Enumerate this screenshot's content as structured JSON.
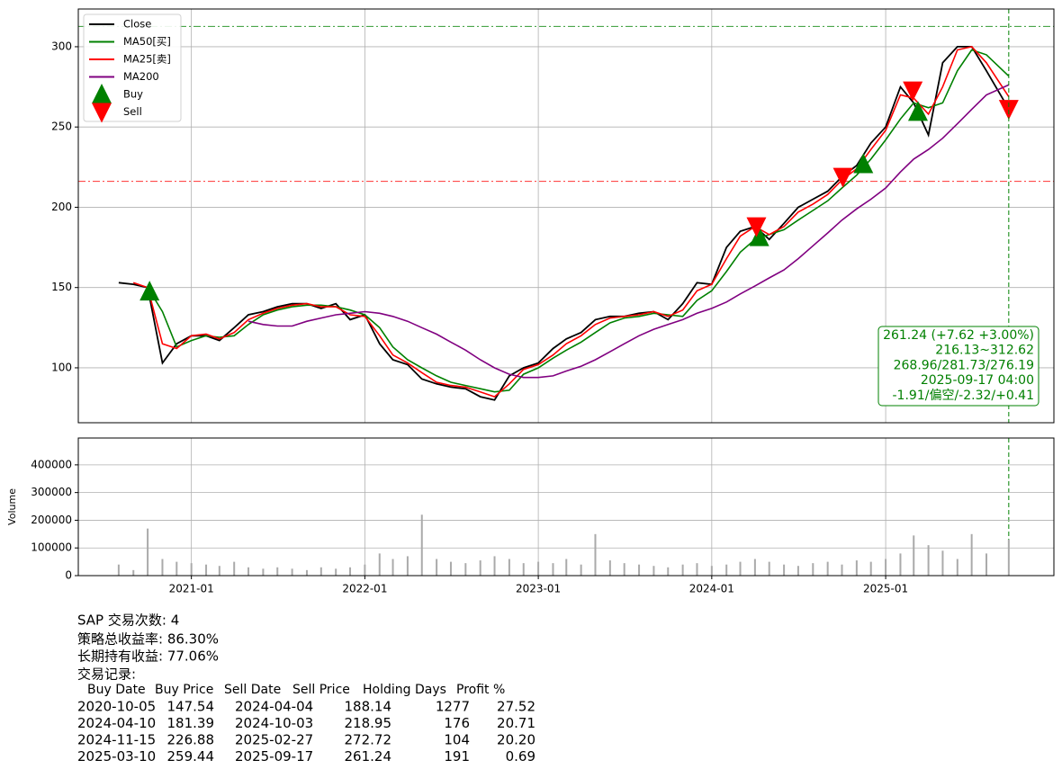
{
  "chart_data": [
    {
      "type": "line",
      "x": [
        "2020-08-01",
        "2020-09-01",
        "2020-10-01",
        "2020-11-01",
        "2020-12-01",
        "2021-01-01",
        "2021-02-01",
        "2021-03-01",
        "2021-04-01",
        "2021-05-01",
        "2021-06-01",
        "2021-07-01",
        "2021-08-01",
        "2021-09-01",
        "2021-10-01",
        "2021-11-01",
        "2021-12-01",
        "2022-01-01",
        "2022-02-01",
        "2022-03-01",
        "2022-04-01",
        "2022-05-01",
        "2022-06-01",
        "2022-07-01",
        "2022-08-01",
        "2022-09-01",
        "2022-10-01",
        "2022-11-01",
        "2022-12-01",
        "2023-01-01",
        "2023-02-01",
        "2023-03-01",
        "2023-04-01",
        "2023-05-01",
        "2023-06-01",
        "2023-07-01",
        "2023-08-01",
        "2023-09-01",
        "2023-10-01",
        "2023-11-01",
        "2023-12-01",
        "2024-01-01",
        "2024-02-01",
        "2024-03-01",
        "2024-04-01",
        "2024-05-01",
        "2024-06-01",
        "2024-07-01",
        "2024-08-01",
        "2024-09-01",
        "2024-10-01",
        "2024-11-01",
        "2024-12-01",
        "2025-01-01",
        "2025-02-01",
        "2025-03-01",
        "2025-04-01",
        "2025-05-01",
        "2025-06-01",
        "2025-07-01",
        "2025-08-01",
        "2025-09-17"
      ],
      "series": [
        {
          "name": "Close",
          "color": "#000000",
          "values": [
            153,
            152,
            150,
            103,
            115,
            120,
            120,
            117,
            125,
            133,
            135,
            138,
            140,
            140,
            137,
            140,
            130,
            133,
            115,
            105,
            102,
            93,
            90,
            88,
            87,
            82,
            80,
            95,
            100,
            103,
            112,
            118,
            122,
            130,
            132,
            132,
            134,
            135,
            130,
            140,
            153,
            152,
            175,
            185,
            188,
            180,
            190,
            200,
            205,
            210,
            219,
            226,
            240,
            250,
            275,
            265,
            245,
            290,
            300,
            300,
            285,
            261.24
          ]
        },
        {
          "name": "MA50[买]",
          "color": "#008000",
          "values": [
            null,
            null,
            150,
            135,
            113,
            117,
            120,
            119,
            120,
            127,
            133,
            136,
            138,
            139,
            139,
            138,
            136,
            133,
            125,
            113,
            105,
            100,
            95,
            91,
            89,
            87,
            85,
            86,
            96,
            100,
            106,
            111,
            116,
            122,
            128,
            131,
            132,
            134,
            133,
            132,
            142,
            148,
            160,
            172,
            180,
            183,
            186,
            192,
            198,
            204,
            212,
            220,
            230,
            242,
            255,
            265,
            262,
            265,
            285,
            298,
            295,
            281.73
          ]
        },
        {
          "name": "MA25[卖]",
          "color": "#ff0000",
          "values": [
            null,
            153,
            150,
            115,
            112,
            120,
            121,
            118,
            122,
            130,
            134,
            137,
            139,
            140,
            138,
            138,
            133,
            132,
            120,
            108,
            103,
            97,
            91,
            89,
            88,
            85,
            82,
            90,
            99,
            102,
            108,
            115,
            120,
            127,
            131,
            132,
            133,
            135,
            132,
            136,
            148,
            152,
            168,
            182,
            188,
            183,
            188,
            197,
            202,
            208,
            217,
            224,
            236,
            248,
            270,
            268,
            258,
            275,
            298,
            300,
            290,
            268.96
          ]
        },
        {
          "name": "MA200",
          "color": "#800080",
          "values": [
            null,
            null,
            null,
            null,
            null,
            null,
            null,
            null,
            null,
            129,
            127,
            126,
            126,
            129,
            131,
            133,
            134,
            135,
            134,
            132,
            129,
            125,
            121,
            116,
            111,
            105,
            100,
            96,
            94,
            94,
            95,
            98,
            101,
            105,
            110,
            115,
            120,
            124,
            127,
            130,
            134,
            137,
            141,
            146,
            151,
            156,
            161,
            168,
            176,
            184,
            192,
            199,
            205,
            212,
            222,
            230,
            236,
            243,
            252,
            261,
            270,
            276.19
          ]
        },
        {
          "name": "Buy",
          "color": "#008000",
          "marker": "^",
          "x": [
            "2020-10-05",
            "2024-04-10",
            "2024-11-15",
            "2025-03-10"
          ],
          "values": [
            147.54,
            181.39,
            226.88,
            259.44
          ]
        },
        {
          "name": "Sell",
          "color": "#ff0000",
          "marker": "v",
          "x": [
            "2024-04-04",
            "2024-10-03",
            "2025-02-27",
            "2025-09-17"
          ],
          "values": [
            188.14,
            218.95,
            272.72,
            261.24
          ]
        }
      ],
      "xlim": [
        "2020-05-08",
        "2025-12-21"
      ],
      "ylim": [
        65.8,
        323.5
      ],
      "yticks": [
        100,
        150,
        200,
        250,
        300
      ],
      "grid": true,
      "legend": "upper left",
      "hlines": [
        {
          "value": 312.62,
          "color": "#008000"
        },
        {
          "value": 216.13,
          "color": "#ff0000"
        }
      ],
      "vline": {
        "x": "2025-09-17",
        "color": "#008000"
      },
      "annotation": [
        "261.24 (+7.62 +3.00%)",
        "216.13~312.62",
        "268.96/281.73/276.19",
        "2025-09-17 04:00",
        "-1.91/偏空/-2.32/+0.41"
      ]
    },
    {
      "type": "bar",
      "ylabel": "Volume",
      "color": "#aaaaaa",
      "x": [
        "2020-08-01",
        "2020-09-01",
        "2020-10-01",
        "2020-11-01",
        "2020-12-01",
        "2021-01-01",
        "2021-02-01",
        "2021-03-01",
        "2021-04-01",
        "2021-05-01",
        "2021-06-01",
        "2021-07-01",
        "2021-08-01",
        "2021-09-01",
        "2021-10-01",
        "2021-11-01",
        "2021-12-01",
        "2022-01-01",
        "2022-02-01",
        "2022-03-01",
        "2022-04-01",
        "2022-05-01",
        "2022-06-01",
        "2022-07-01",
        "2022-08-01",
        "2022-09-01",
        "2022-10-01",
        "2022-11-01",
        "2022-12-01",
        "2023-01-01",
        "2023-02-01",
        "2023-03-01",
        "2023-04-01",
        "2023-05-01",
        "2023-06-01",
        "2023-07-01",
        "2023-08-01",
        "2023-09-01",
        "2023-10-01",
        "2023-11-01",
        "2023-12-01",
        "2024-01-01",
        "2024-02-01",
        "2024-03-01",
        "2024-04-01",
        "2024-05-01",
        "2024-06-01",
        "2024-07-01",
        "2024-08-01",
        "2024-09-01",
        "2024-10-01",
        "2024-11-01",
        "2024-12-01",
        "2025-01-01",
        "2025-02-01",
        "2025-03-01",
        "2025-04-01",
        "2025-05-01",
        "2025-06-01",
        "2025-07-01",
        "2025-08-01",
        "2025-09-17"
      ],
      "values": [
        40000,
        20000,
        170000,
        60000,
        50000,
        45000,
        40000,
        35000,
        50000,
        30000,
        25000,
        30000,
        25000,
        20000,
        30000,
        25000,
        30000,
        40000,
        80000,
        60000,
        70000,
        220000,
        60000,
        50000,
        45000,
        55000,
        70000,
        60000,
        45000,
        50000,
        45000,
        60000,
        40000,
        150000,
        55000,
        45000,
        40000,
        35000,
        30000,
        40000,
        45000,
        35000,
        40000,
        50000,
        60000,
        50000,
        40000,
        35000,
        45000,
        50000,
        40000,
        55000,
        50000,
        60000,
        80000,
        145000,
        110000,
        90000,
        60000,
        150000,
        80000,
        130000
      ],
      "xlim": [
        "2020-05-08",
        "2025-12-21"
      ],
      "ylim": [
        0,
        497000
      ],
      "yticks": [
        0,
        100000,
        200000,
        300000,
        400000
      ],
      "xticks": [
        {
          "value": "2021-01-01",
          "label": "2021-01"
        },
        {
          "value": "2022-01-01",
          "label": "2022-01"
        },
        {
          "value": "2023-01-01",
          "label": "2023-01"
        },
        {
          "value": "2024-01-01",
          "label": "2024-01"
        },
        {
          "value": "2025-01-01",
          "label": "2025-01"
        }
      ],
      "grid": true
    }
  ],
  "report": {
    "lines": [
      "SAP 交易次数: 4",
      "策略总收益率: 86.30%",
      "长期持有收益: 77.06%",
      "交易记录:"
    ],
    "table": {
      "header": [
        "Buy Date",
        "Buy Price",
        "Sell Date",
        "Sell Price",
        "Holding Days",
        "Profit %"
      ],
      "rows": [
        [
          "2020-10-05",
          "147.54",
          "2024-04-04",
          "188.14",
          "1277",
          "27.52"
        ],
        [
          "2024-04-10",
          "181.39",
          "2024-10-03",
          "218.95",
          "176",
          "20.71"
        ],
        [
          "2024-11-15",
          "226.88",
          "2025-02-27",
          "272.72",
          "104",
          "20.20"
        ],
        [
          "2025-03-10",
          "259.44",
          "2025-09-17",
          "261.24",
          "191",
          "0.69"
        ]
      ]
    }
  }
}
